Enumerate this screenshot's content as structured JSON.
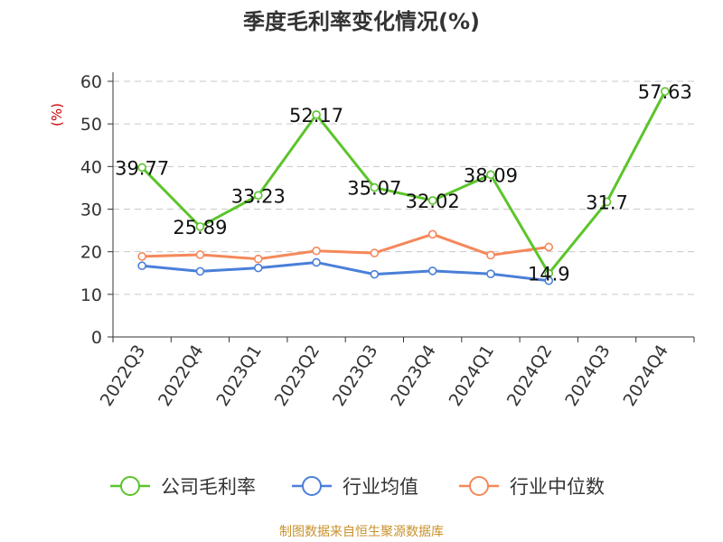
{
  "title": "季度毛利率变化情况(%)",
  "source": "制图数据来自恒生聚源数据库",
  "chart_data": {
    "type": "line",
    "title": "季度毛利率变化情况(%)",
    "unit_label": "(%)",
    "ylim": [
      0,
      60
    ],
    "yticks": [
      0,
      10,
      20,
      30,
      40,
      50,
      60
    ],
    "grid": true,
    "legend_position": "bottom",
    "categories": [
      "2022Q3",
      "2022Q4",
      "2023Q1",
      "2023Q2",
      "2023Q3",
      "2023Q4",
      "2024Q1",
      "2024Q2",
      "2024Q3",
      "2024Q4"
    ],
    "series": [
      {
        "name": "公司毛利率",
        "color": "#5bc42a",
        "values": [
          39.77,
          25.89,
          33.23,
          52.17,
          35.07,
          32.02,
          38.09,
          14.9,
          31.7,
          57.63
        ],
        "labels": [
          "39.77",
          "25.89",
          "33.23",
          "52.17",
          "35.07",
          "32.02",
          "38.09",
          "14.9",
          "31.7",
          "57.63"
        ]
      },
      {
        "name": "行业均值",
        "color": "#4a7fd9",
        "values": [
          16.7,
          15.4,
          16.2,
          17.5,
          14.7,
          15.5,
          14.8,
          13.2,
          null,
          null
        ]
      },
      {
        "name": "行业中位数",
        "color": "#f5885a",
        "values": [
          18.9,
          19.3,
          18.3,
          20.2,
          19.7,
          24.1,
          19.2,
          21.1,
          null,
          null
        ]
      }
    ]
  }
}
